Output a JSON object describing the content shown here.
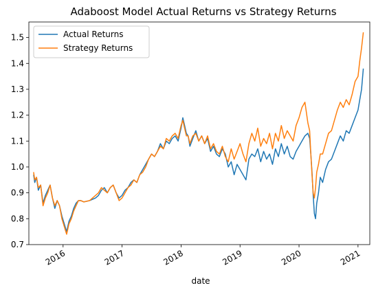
{
  "chart_data": {
    "type": "line",
    "title": "Adaboost Model Actual Returns vs Strategy Returns",
    "xlabel": "date",
    "ylabel": "",
    "xlim": [
      2015.42,
      2021.2
    ],
    "ylim": [
      0.7,
      1.56
    ],
    "x_ticks": [
      {
        "value": 2016,
        "label": "2016"
      },
      {
        "value": 2017,
        "label": "2017"
      },
      {
        "value": 2018,
        "label": "2018"
      },
      {
        "value": 2019,
        "label": "2019"
      },
      {
        "value": 2020,
        "label": "2020"
      },
      {
        "value": 2021,
        "label": "2021"
      }
    ],
    "y_ticks": [
      {
        "value": 0.7,
        "label": "0.7"
      },
      {
        "value": 0.8,
        "label": "0.8"
      },
      {
        "value": 0.9,
        "label": "0.9"
      },
      {
        "value": 1.0,
        "label": "1.0"
      },
      {
        "value": 1.1,
        "label": "1.1"
      },
      {
        "value": 1.2,
        "label": "1.2"
      },
      {
        "value": 1.3,
        "label": "1.3"
      },
      {
        "value": 1.4,
        "label": "1.4"
      },
      {
        "value": 1.5,
        "label": "1.5"
      }
    ],
    "grid": false,
    "legend": "top-left",
    "series": [
      {
        "name": "Actual Returns",
        "color": "#1f77b4",
        "x": [
          2015.5,
          2015.52,
          2015.55,
          2015.58,
          2015.62,
          2015.66,
          2015.7,
          2015.74,
          2015.78,
          2015.82,
          2015.86,
          2015.9,
          2015.94,
          2015.98,
          2016.02,
          2016.06,
          2016.1,
          2016.14,
          2016.18,
          2016.22,
          2016.26,
          2016.3,
          2016.35,
          2016.45,
          2016.55,
          2016.6,
          2016.65,
          2016.7,
          2016.75,
          2016.8,
          2016.85,
          2016.9,
          2016.95,
          2017.0,
          2017.05,
          2017.1,
          2017.15,
          2017.2,
          2017.25,
          2017.3,
          2017.35,
          2017.4,
          2017.45,
          2017.5,
          2017.55,
          2017.6,
          2017.65,
          2017.7,
          2017.75,
          2017.8,
          2017.85,
          2017.9,
          2017.95,
          2018.0,
          2018.03,
          2018.06,
          2018.09,
          2018.12,
          2018.15,
          2018.2,
          2018.25,
          2018.3,
          2018.35,
          2018.4,
          2018.45,
          2018.5,
          2018.55,
          2018.6,
          2018.65,
          2018.7,
          2018.75,
          2018.8,
          2018.85,
          2018.9,
          2018.95,
          2019.0,
          2019.05,
          2019.1,
          2019.15,
          2019.2,
          2019.25,
          2019.3,
          2019.35,
          2019.4,
          2019.45,
          2019.5,
          2019.55,
          2019.6,
          2019.65,
          2019.7,
          2019.75,
          2019.8,
          2019.85,
          2019.9,
          2019.95,
          2020.0,
          2020.05,
          2020.1,
          2020.15,
          2020.18,
          2020.2,
          2020.22,
          2020.24,
          2020.26,
          2020.28,
          2020.3,
          2020.33,
          2020.36,
          2020.4,
          2020.45,
          2020.5,
          2020.55,
          2020.6,
          2020.65,
          2020.7,
          2020.75,
          2020.8,
          2020.85,
          2020.9,
          2020.95,
          2021.0,
          2021.03,
          2021.06,
          2021.09
        ],
        "values": [
          0.97,
          0.94,
          0.96,
          0.91,
          0.93,
          0.86,
          0.89,
          0.91,
          0.93,
          0.88,
          0.84,
          0.87,
          0.85,
          0.81,
          0.78,
          0.75,
          0.79,
          0.81,
          0.84,
          0.86,
          0.87,
          0.87,
          0.865,
          0.87,
          0.88,
          0.89,
          0.91,
          0.92,
          0.9,
          0.92,
          0.93,
          0.9,
          0.88,
          0.89,
          0.91,
          0.92,
          0.94,
          0.95,
          0.94,
          0.97,
          0.99,
          1.01,
          1.03,
          1.05,
          1.04,
          1.06,
          1.09,
          1.07,
          1.1,
          1.09,
          1.11,
          1.12,
          1.1,
          1.15,
          1.19,
          1.16,
          1.13,
          1.12,
          1.08,
          1.11,
          1.14,
          1.1,
          1.12,
          1.09,
          1.11,
          1.06,
          1.08,
          1.05,
          1.04,
          1.07,
          1.05,
          1.0,
          1.02,
          0.97,
          1.01,
          0.99,
          0.97,
          0.95,
          1.03,
          1.05,
          1.04,
          1.07,
          1.02,
          1.06,
          1.03,
          1.05,
          1.01,
          1.07,
          1.04,
          1.09,
          1.05,
          1.08,
          1.04,
          1.03,
          1.06,
          1.08,
          1.1,
          1.12,
          1.13,
          1.11,
          1.05,
          0.98,
          0.89,
          0.82,
          0.8,
          0.86,
          0.9,
          0.96,
          0.94,
          0.99,
          1.02,
          1.03,
          1.06,
          1.09,
          1.12,
          1.1,
          1.14,
          1.13,
          1.16,
          1.19,
          1.22,
          1.26,
          1.3,
          1.38
        ]
      },
      {
        "name": "Strategy Returns",
        "color": "#ff7f0e",
        "x": [
          2015.5,
          2015.52,
          2015.55,
          2015.58,
          2015.62,
          2015.66,
          2015.7,
          2015.74,
          2015.78,
          2015.82,
          2015.86,
          2015.9,
          2015.94,
          2015.98,
          2016.02,
          2016.06,
          2016.1,
          2016.14,
          2016.18,
          2016.22,
          2016.26,
          2016.3,
          2016.35,
          2016.45,
          2016.55,
          2016.6,
          2016.65,
          2016.7,
          2016.75,
          2016.8,
          2016.85,
          2016.9,
          2016.95,
          2017.0,
          2017.05,
          2017.1,
          2017.15,
          2017.2,
          2017.25,
          2017.3,
          2017.35,
          2017.4,
          2017.45,
          2017.5,
          2017.55,
          2017.6,
          2017.65,
          2017.7,
          2017.75,
          2017.8,
          2017.85,
          2017.9,
          2017.95,
          2018.0,
          2018.03,
          2018.06,
          2018.09,
          2018.12,
          2018.15,
          2018.2,
          2018.25,
          2018.3,
          2018.35,
          2018.4,
          2018.45,
          2018.5,
          2018.55,
          2018.6,
          2018.65,
          2018.7,
          2018.75,
          2018.8,
          2018.85,
          2018.9,
          2018.95,
          2019.0,
          2019.05,
          2019.1,
          2019.15,
          2019.2,
          2019.25,
          2019.3,
          2019.35,
          2019.4,
          2019.45,
          2019.5,
          2019.55,
          2019.6,
          2019.65,
          2019.7,
          2019.75,
          2019.8,
          2019.85,
          2019.9,
          2019.95,
          2020.0,
          2020.05,
          2020.1,
          2020.15,
          2020.18,
          2020.2,
          2020.22,
          2020.24,
          2020.26,
          2020.28,
          2020.3,
          2020.33,
          2020.36,
          2020.4,
          2020.45,
          2020.5,
          2020.55,
          2020.6,
          2020.65,
          2020.7,
          2020.75,
          2020.8,
          2020.85,
          2020.9,
          2020.95,
          2021.0,
          2021.03,
          2021.06,
          2021.09
        ],
        "values": [
          0.98,
          0.95,
          0.96,
          0.92,
          0.93,
          0.85,
          0.88,
          0.9,
          0.93,
          0.88,
          0.85,
          0.87,
          0.85,
          0.8,
          0.77,
          0.74,
          0.78,
          0.8,
          0.83,
          0.85,
          0.87,
          0.87,
          0.865,
          0.87,
          0.89,
          0.9,
          0.92,
          0.91,
          0.9,
          0.92,
          0.93,
          0.9,
          0.87,
          0.88,
          0.9,
          0.92,
          0.93,
          0.95,
          0.94,
          0.97,
          0.98,
          1.0,
          1.03,
          1.05,
          1.04,
          1.06,
          1.08,
          1.07,
          1.11,
          1.1,
          1.12,
          1.13,
          1.11,
          1.16,
          1.18,
          1.15,
          1.12,
          1.12,
          1.09,
          1.12,
          1.13,
          1.1,
          1.12,
          1.09,
          1.12,
          1.07,
          1.09,
          1.06,
          1.05,
          1.08,
          1.04,
          1.02,
          1.07,
          1.03,
          1.06,
          1.09,
          1.05,
          1.02,
          1.09,
          1.13,
          1.1,
          1.15,
          1.08,
          1.11,
          1.09,
          1.13,
          1.07,
          1.13,
          1.1,
          1.16,
          1.11,
          1.14,
          1.12,
          1.1,
          1.16,
          1.19,
          1.23,
          1.25,
          1.17,
          1.14,
          1.05,
          0.97,
          0.9,
          0.88,
          0.92,
          0.98,
          1.01,
          1.05,
          1.05,
          1.09,
          1.13,
          1.14,
          1.18,
          1.22,
          1.25,
          1.23,
          1.26,
          1.24,
          1.28,
          1.33,
          1.35,
          1.41,
          1.46,
          1.52
        ]
      }
    ]
  }
}
